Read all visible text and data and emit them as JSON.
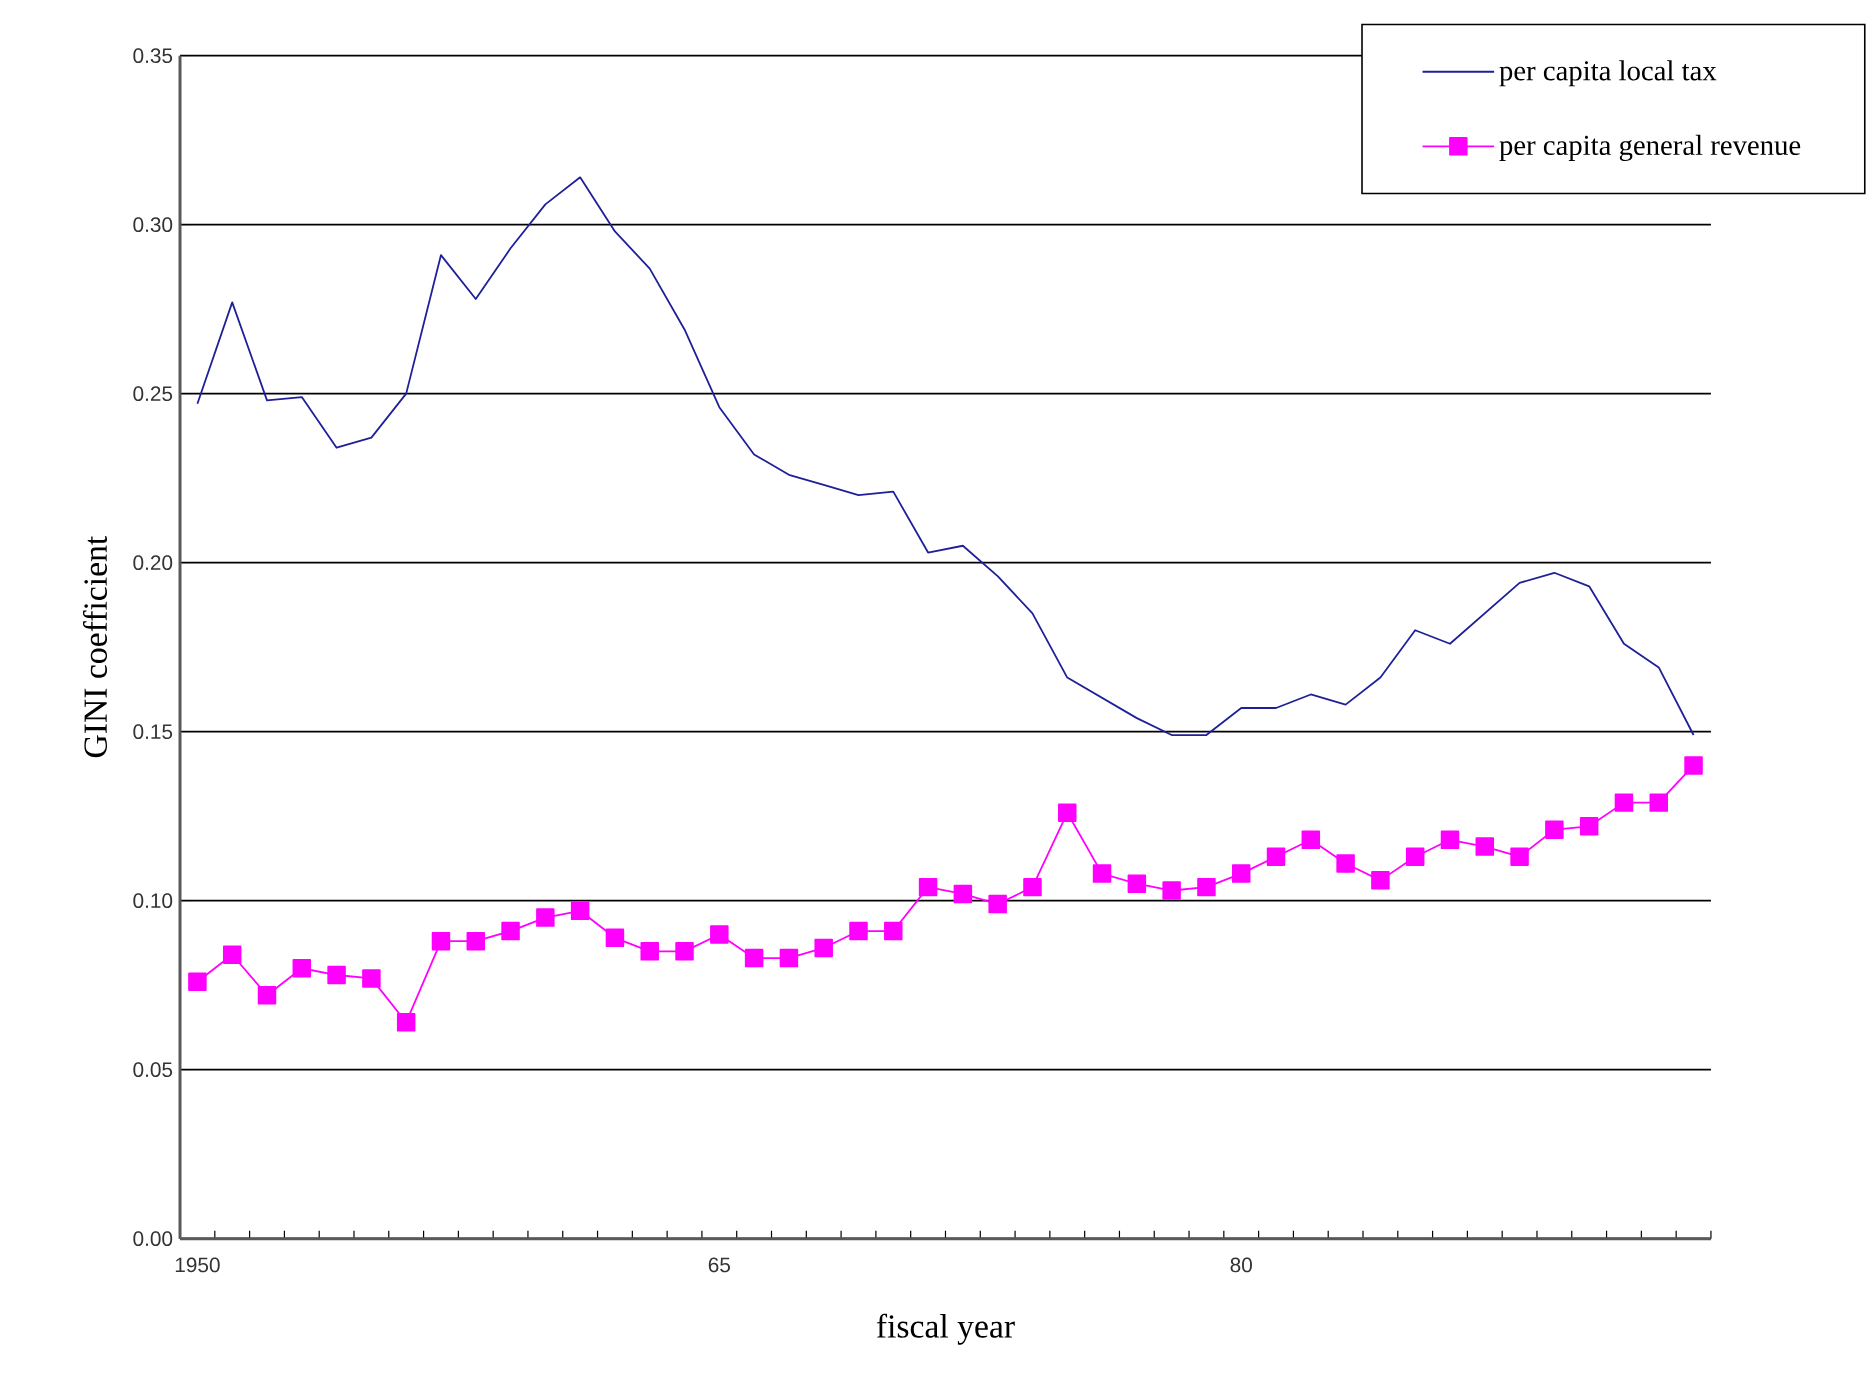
{
  "chart_data": {
    "type": "line",
    "xlabel": "fiscal year",
    "ylabel": "GINI coefficient",
    "x": [
      1950,
      1951,
      1952,
      1953,
      1954,
      1955,
      1956,
      1957,
      1958,
      1959,
      1960,
      1961,
      1962,
      1963,
      1964,
      1965,
      1966,
      1967,
      1968,
      1969,
      1970,
      1971,
      1972,
      1973,
      1974,
      1975,
      1976,
      1977,
      1978,
      1979,
      1980,
      1981,
      1982,
      1983,
      1984,
      1985,
      1986,
      1987,
      1988,
      1989,
      1990,
      1991,
      1992,
      1993
    ],
    "series": [
      {
        "name": "per capita local tax",
        "color": "#1f1f9a",
        "marker": "none",
        "values": [
          0.247,
          0.277,
          0.248,
          0.249,
          0.234,
          0.237,
          0.25,
          0.291,
          0.278,
          0.293,
          0.306,
          0.314,
          0.298,
          0.287,
          0.269,
          0.246,
          0.232,
          0.226,
          0.223,
          0.22,
          0.221,
          0.203,
          0.205,
          0.196,
          0.185,
          0.166,
          0.16,
          0.154,
          0.149,
          0.149,
          0.157,
          0.157,
          0.161,
          0.158,
          0.166,
          0.18,
          0.176,
          0.185,
          0.194,
          0.197,
          0.193,
          0.176,
          0.169,
          0.149
        ]
      },
      {
        "name": "per capita general revenue",
        "color": "#ff00ff",
        "marker": "square",
        "values": [
          0.076,
          0.084,
          0.072,
          0.08,
          0.078,
          0.077,
          0.064,
          0.088,
          0.088,
          0.091,
          0.095,
          0.097,
          0.089,
          0.085,
          0.085,
          0.09,
          0.083,
          0.083,
          0.086,
          0.091,
          0.091,
          0.104,
          0.102,
          0.099,
          0.104,
          0.126,
          0.108,
          0.105,
          0.103,
          0.104,
          0.108,
          0.113,
          0.118,
          0.111,
          0.106,
          0.113,
          0.118,
          0.116,
          0.113,
          0.121,
          0.122,
          0.129,
          0.129,
          0.14
        ]
      }
    ],
    "xlim": [
      1949.5,
      1993.5
    ],
    "xticks": [
      {
        "value": 1950,
        "label": "1950"
      },
      {
        "value": 1965,
        "label": "65"
      },
      {
        "value": 1980,
        "label": "80"
      }
    ],
    "ylim": [
      0,
      0.35
    ],
    "yticks": [
      {
        "value": 0,
        "label": "0.00"
      },
      {
        "value": 0.05,
        "label": "0.05"
      },
      {
        "value": 0.1,
        "label": "0.10"
      },
      {
        "value": 0.15,
        "label": "0.15"
      },
      {
        "value": 0.2,
        "label": "0.20"
      },
      {
        "value": 0.25,
        "label": "0.25"
      },
      {
        "value": 0.3,
        "label": "0.30"
      },
      {
        "value": 0.35,
        "label": "0.35"
      }
    ],
    "grid": "y",
    "legend": "top right",
    "line_style": "solid"
  }
}
